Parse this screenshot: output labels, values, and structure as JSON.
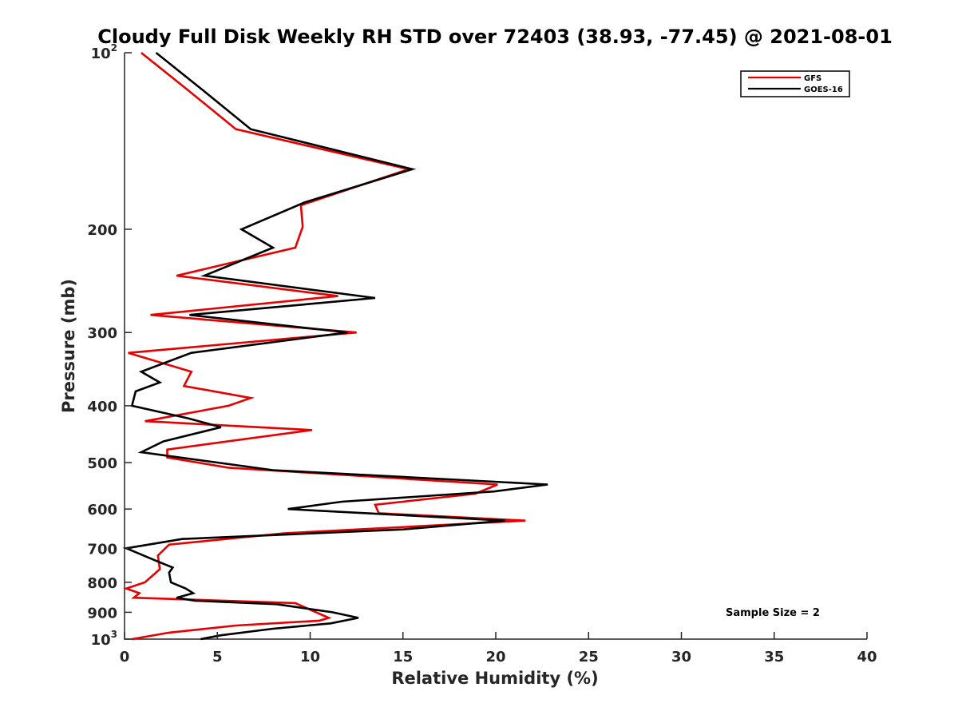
{
  "chart_data": {
    "type": "line",
    "title": "Cloudy Full Disk Weekly RH STD over 72403 (38.93, -77.45) @ 2021-08-01",
    "xlabel": "Relative Humidity (%)",
    "ylabel": "Pressure (mb)",
    "xlim": [
      0,
      40
    ],
    "ylim": [
      100,
      1000
    ],
    "yscale": "log",
    "yreversed": true,
    "grid": false,
    "legend_position": "top-right",
    "xticks": [
      0,
      5,
      10,
      15,
      20,
      25,
      30,
      35,
      40
    ],
    "xtick_labels": [
      "0",
      "5",
      "10",
      "15",
      "20",
      "25",
      "30",
      "35",
      "40"
    ],
    "yticks": [
      {
        "value": 100,
        "base": "10",
        "exp": "2"
      },
      {
        "value": 200,
        "label": "200"
      },
      {
        "value": 300,
        "label": "300"
      },
      {
        "value": 400,
        "label": "400"
      },
      {
        "value": 500,
        "label": "500"
      },
      {
        "value": 600,
        "label": "600"
      },
      {
        "value": 700,
        "label": "700"
      },
      {
        "value": 800,
        "label": "800"
      },
      {
        "value": 900,
        "label": "900"
      },
      {
        "value": 1000,
        "base": "10",
        "exp": "3"
      }
    ],
    "annotation": "Sample Size = 2",
    "series": [
      {
        "name": "GFS",
        "color": "#e60000",
        "points": [
          [
            0.9,
            100
          ],
          [
            3.3,
            115
          ],
          [
            6.0,
            135
          ],
          [
            15.3,
            158
          ],
          [
            9.5,
            182
          ],
          [
            9.6,
            198
          ],
          [
            9.2,
            215
          ],
          [
            2.8,
            240
          ],
          [
            11.5,
            260
          ],
          [
            1.4,
            280
          ],
          [
            12.5,
            300
          ],
          [
            0.2,
            325
          ],
          [
            3.6,
            350
          ],
          [
            3.2,
            370
          ],
          [
            6.8,
            388
          ],
          [
            5.6,
            400
          ],
          [
            1.1,
            425
          ],
          [
            10.1,
            440
          ],
          [
            2.3,
            475
          ],
          [
            2.3,
            490
          ],
          [
            5.6,
            510
          ],
          [
            20.1,
            545
          ],
          [
            18.9,
            565
          ],
          [
            13.5,
            590
          ],
          [
            13.7,
            610
          ],
          [
            21.6,
            628
          ],
          [
            8.6,
            660
          ],
          [
            2.4,
            690
          ],
          [
            1.8,
            720
          ],
          [
            1.9,
            760
          ],
          [
            1.1,
            800
          ],
          [
            0.1,
            820
          ],
          [
            0.8,
            835
          ],
          [
            0.5,
            850
          ],
          [
            9.2,
            868
          ],
          [
            11.0,
            920
          ],
          [
            10.5,
            930
          ],
          [
            6.0,
            948
          ],
          [
            2.4,
            975
          ],
          [
            0.4,
            1000
          ]
        ]
      },
      {
        "name": "GOES-16",
        "color": "#000000",
        "points": [
          [
            1.7,
            100
          ],
          [
            4.1,
            115
          ],
          [
            6.8,
            135
          ],
          [
            15.5,
            158
          ],
          [
            9.7,
            180
          ],
          [
            6.3,
            200
          ],
          [
            8.0,
            215
          ],
          [
            4.3,
            240
          ],
          [
            13.5,
            262
          ],
          [
            3.5,
            280
          ],
          [
            12.0,
            300
          ],
          [
            3.6,
            325
          ],
          [
            0.9,
            350
          ],
          [
            1.9,
            365
          ],
          [
            0.6,
            378
          ],
          [
            0.4,
            400
          ],
          [
            3.4,
            420
          ],
          [
            5.2,
            435
          ],
          [
            2.1,
            460
          ],
          [
            0.9,
            480
          ],
          [
            5.0,
            500
          ],
          [
            8.0,
            515
          ],
          [
            22.8,
            545
          ],
          [
            19.9,
            560
          ],
          [
            11.7,
            583
          ],
          [
            8.8,
            600
          ],
          [
            20.5,
            628
          ],
          [
            15.0,
            650
          ],
          [
            3.1,
            675
          ],
          [
            0.1,
            700
          ],
          [
            1.7,
            735
          ],
          [
            2.6,
            755
          ],
          [
            2.4,
            770
          ],
          [
            2.5,
            800
          ],
          [
            3.3,
            820
          ],
          [
            3.7,
            835
          ],
          [
            2.8,
            850
          ],
          [
            3.8,
            860
          ],
          [
            8.2,
            872
          ],
          [
            11.2,
            900
          ],
          [
            12.6,
            920
          ],
          [
            11.1,
            940
          ],
          [
            8.0,
            960
          ],
          [
            5.2,
            985
          ],
          [
            4.1,
            1000
          ]
        ]
      }
    ]
  }
}
